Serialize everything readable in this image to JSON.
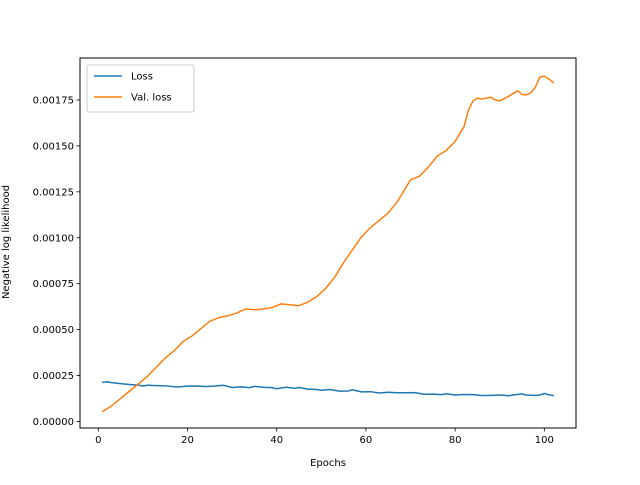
{
  "chart_data": {
    "type": "line",
    "title": "",
    "xlabel": "Epochs",
    "ylabel": "Negative log likelihood",
    "xlim": [
      -4.1,
      107.1
    ],
    "ylim": [
      -3.57e-05,
      0.0019786
    ],
    "x_ticks": [
      0,
      20,
      40,
      60,
      80,
      100
    ],
    "x_tick_labels": [
      "0",
      "20",
      "40",
      "60",
      "80",
      "100"
    ],
    "y_ticks": [
      0,
      0.00025,
      0.0005,
      0.00075,
      0.001,
      0.00125,
      0.0015,
      0.00175
    ],
    "y_tick_labels": [
      "0.00000",
      "0.00025",
      "0.00050",
      "0.00075",
      "0.00100",
      "0.00125",
      "0.00150",
      "0.00175"
    ],
    "grid": false,
    "legend_position": "top-left",
    "series": [
      {
        "name": "Loss",
        "color": "#1f77b4",
        "points": [
          [
            1,
            0.000213
          ],
          [
            2,
            0.000216
          ],
          [
            3,
            0.000211
          ],
          [
            5,
            0.000206
          ],
          [
            7,
            0.000201
          ],
          [
            9,
            0.000198
          ],
          [
            10,
            0.000193
          ],
          [
            11,
            0.000197
          ],
          [
            13,
            0.000195
          ],
          [
            15,
            0.000194
          ],
          [
            17,
            0.000189
          ],
          [
            18,
            0.000188
          ],
          [
            20,
            0.000192
          ],
          [
            22,
            0.000193
          ],
          [
            24,
            0.00019
          ],
          [
            26,
            0.000192
          ],
          [
            28,
            0.000197
          ],
          [
            30,
            0.000185
          ],
          [
            32,
            0.000188
          ],
          [
            34,
            0.000184
          ],
          [
            35,
            0.000191
          ],
          [
            37,
            0.000186
          ],
          [
            39,
            0.000184
          ],
          [
            40,
            0.000178
          ],
          [
            42,
            0.000186
          ],
          [
            44,
            0.000181
          ],
          [
            45,
            0.000185
          ],
          [
            47,
            0.000176
          ],
          [
            49,
            0.000174
          ],
          [
            50,
            0.00017
          ],
          [
            52,
            0.000174
          ],
          [
            54,
            0.000165
          ],
          [
            56,
            0.000166
          ],
          [
            57,
            0.000172
          ],
          [
            59,
            0.000161
          ],
          [
            61,
            0.000162
          ],
          [
            63,
            0.000155
          ],
          [
            65,
            0.000159
          ],
          [
            67,
            0.000156
          ],
          [
            69,
            0.000156
          ],
          [
            71,
            0.000157
          ],
          [
            73,
            0.000148
          ],
          [
            75,
            0.000149
          ],
          [
            77,
            0.000146
          ],
          [
            78,
            0.000151
          ],
          [
            80,
            0.000144
          ],
          [
            82,
            0.000147
          ],
          [
            84,
            0.000146
          ],
          [
            86,
            0.000141
          ],
          [
            88,
            0.000142
          ],
          [
            90,
            0.000144
          ],
          [
            92,
            0.00014
          ],
          [
            93,
            0.000144
          ],
          [
            95,
            0.00015
          ],
          [
            96,
            0.000143
          ],
          [
            98,
            0.000142
          ],
          [
            99,
            0.000144
          ],
          [
            100,
            0.000152
          ],
          [
            101,
            0.000145
          ],
          [
            102,
            0.000141
          ]
        ]
      },
      {
        "name": "Val. loss",
        "color": "#ff7f0e",
        "points": [
          [
            1,
            5.5e-05
          ],
          [
            3,
            8.5e-05
          ],
          [
            5,
            0.000125
          ],
          [
            7,
            0.000165
          ],
          [
            9,
            0.000205
          ],
          [
            11,
            0.000245
          ],
          [
            13,
            0.000295
          ],
          [
            15,
            0.000345
          ],
          [
            17,
            0.000385
          ],
          [
            19,
            0.000435
          ],
          [
            21,
            0.000465
          ],
          [
            23,
            0.000505
          ],
          [
            25,
            0.000545
          ],
          [
            27,
            0.000565
          ],
          [
            29,
            0.000575
          ],
          [
            31,
            0.00059
          ],
          [
            33,
            0.000612
          ],
          [
            35,
            0.000608
          ],
          [
            37,
            0.000612
          ],
          [
            39,
            0.00062
          ],
          [
            41,
            0.00064
          ],
          [
            43,
            0.000635
          ],
          [
            45,
            0.00063
          ],
          [
            47,
            0.00065
          ],
          [
            49,
            0.00068
          ],
          [
            51,
            0.000725
          ],
          [
            53,
            0.000785
          ],
          [
            55,
            0.000865
          ],
          [
            57,
            0.000935
          ],
          [
            59,
            0.001005
          ],
          [
            61,
            0.001055
          ],
          [
            63,
            0.001095
          ],
          [
            65,
            0.001135
          ],
          [
            67,
            0.001195
          ],
          [
            69,
            0.001275
          ],
          [
            70,
            0.001315
          ],
          [
            72,
            0.001335
          ],
          [
            74,
            0.001385
          ],
          [
            76,
            0.001445
          ],
          [
            78,
            0.001475
          ],
          [
            80,
            0.001525
          ],
          [
            82,
            0.001605
          ],
          [
            83,
            0.001695
          ],
          [
            84,
            0.001745
          ],
          [
            85,
            0.00176
          ],
          [
            86,
            0.001755
          ],
          [
            88,
            0.001765
          ],
          [
            89,
            0.00175
          ],
          [
            90,
            0.001745
          ],
          [
            92,
            0.00177
          ],
          [
            94,
            0.0018
          ],
          [
            95,
            0.00178
          ],
          [
            96,
            0.001778
          ],
          [
            97,
            0.00179
          ],
          [
            98,
            0.00182
          ],
          [
            99,
            0.001875
          ],
          [
            100,
            0.00188
          ],
          [
            101,
            0.001865
          ],
          [
            102,
            0.001845
          ]
        ]
      }
    ]
  }
}
